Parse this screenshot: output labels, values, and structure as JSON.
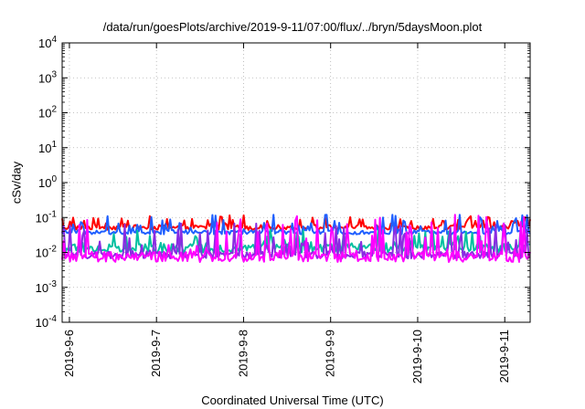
{
  "chart_data": {
    "type": "line",
    "title": "/data/run/goesPlots/archive/2019-9-11/07:00/flux/../bryn/5daysMoon.plot",
    "xlabel": "Coordinated Universal Time (UTC)",
    "ylabel": "cSv/day",
    "y_scale": "log",
    "ylim": [
      0.0001,
      10000
    ],
    "y_ticks": [
      {
        "base": "10",
        "exp": "-4"
      },
      {
        "base": "10",
        "exp": "-3"
      },
      {
        "base": "10",
        "exp": "-2"
      },
      {
        "base": "10",
        "exp": "-1"
      },
      {
        "base": "10",
        "exp": "0"
      },
      {
        "base": "10",
        "exp": "1"
      },
      {
        "base": "10",
        "exp": "2"
      },
      {
        "base": "10",
        "exp": "3"
      },
      {
        "base": "10",
        "exp": "4"
      }
    ],
    "x_ticks": [
      "2019-9-6",
      "2019-9-7",
      "2019-9-8",
      "2019-9-9",
      "2019-9-10",
      "2019-9-11"
    ],
    "xlim": [
      "2019-09-05T22:00",
      "2019-09-11T07:00"
    ],
    "grid": true,
    "series": [
      {
        "color": "#ff0000",
        "base": 0.052,
        "spread": 0.14,
        "spikes": 0.3
      },
      {
        "color": "#1f5fff",
        "base": 0.038,
        "spread": 0.12,
        "spikes": 0.55
      },
      {
        "color": "#00c0a0",
        "base": 0.013,
        "spread": 0.25,
        "spikes": 0.5
      },
      {
        "color": "#8a2be2",
        "base": 0.0085,
        "spread": 0.2,
        "spikes": 0.9
      },
      {
        "color": "#ff00ff",
        "base": 0.0075,
        "spread": 0.3,
        "spikes": 1.2
      }
    ]
  }
}
